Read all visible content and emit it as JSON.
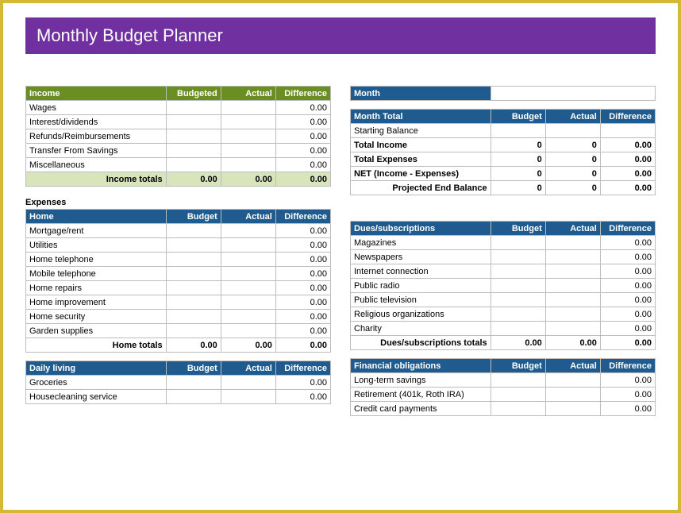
{
  "title": "Monthly Budget Planner",
  "colors": {
    "outer_border": "#d4b838",
    "title_bg": "#7030a0",
    "title_fg": "#ffffff",
    "green_header": "#6b8e23",
    "blue_header": "#1f5b8e",
    "totals_green_bg": "#d8e4bc",
    "grid": "#bdbdbd"
  },
  "income": {
    "header": "Income",
    "cols": [
      "Budgeted",
      "Actual",
      "Difference"
    ],
    "rows": [
      {
        "label": "Wages",
        "b": "",
        "a": "",
        "d": "0.00"
      },
      {
        "label": "Interest/dividends",
        "b": "",
        "a": "",
        "d": "0.00"
      },
      {
        "label": "Refunds/Reimbursements",
        "b": "",
        "a": "",
        "d": "0.00"
      },
      {
        "label": "Transfer From Savings",
        "b": "",
        "a": "",
        "d": "0.00"
      },
      {
        "label": "Miscellaneous",
        "b": "",
        "a": "",
        "d": "0.00"
      }
    ],
    "totals": {
      "label": "Income totals",
      "b": "0.00",
      "a": "0.00",
      "d": "0.00"
    }
  },
  "expenses_label": "Expenses",
  "home": {
    "header": "Home",
    "cols": [
      "Budget",
      "Actual",
      "Difference"
    ],
    "rows": [
      {
        "label": "Mortgage/rent",
        "b": "",
        "a": "",
        "d": "0.00"
      },
      {
        "label": "Utilities",
        "b": "",
        "a": "",
        "d": "0.00"
      },
      {
        "label": "Home telephone",
        "b": "",
        "a": "",
        "d": "0.00"
      },
      {
        "label": "Mobile telephone",
        "b": "",
        "a": "",
        "d": "0.00"
      },
      {
        "label": "Home repairs",
        "b": "",
        "a": "",
        "d": "0.00"
      },
      {
        "label": "Home improvement",
        "b": "",
        "a": "",
        "d": "0.00"
      },
      {
        "label": "Home security",
        "b": "",
        "a": "",
        "d": "0.00"
      },
      {
        "label": "Garden supplies",
        "b": "",
        "a": "",
        "d": "0.00"
      }
    ],
    "totals": {
      "label": "Home totals",
      "b": "0.00",
      "a": "0.00",
      "d": "0.00"
    }
  },
  "daily": {
    "header": "Daily living",
    "cols": [
      "Budget",
      "Actual",
      "Difference"
    ],
    "rows": [
      {
        "label": "Groceries",
        "b": "",
        "a": "",
        "d": "0.00"
      },
      {
        "label": "Housecleaning service",
        "b": "",
        "a": "",
        "d": "0.00"
      }
    ]
  },
  "month": {
    "label": "Month",
    "value": ""
  },
  "month_total": {
    "header": "Month Total",
    "cols": [
      "Budget",
      "Actual",
      "Difference"
    ],
    "rows": [
      {
        "label": "Starting Balance",
        "b": "",
        "a": "",
        "d": "",
        "bold": false
      },
      {
        "label": "Total Income",
        "b": "0",
        "a": "0",
        "d": "0.00",
        "bold": true
      },
      {
        "label": "Total Expenses",
        "b": "0",
        "a": "0",
        "d": "0.00",
        "bold": true
      },
      {
        "label": "NET (Income - Expenses)",
        "b": "0",
        "a": "0",
        "d": "0.00",
        "bold": true
      }
    ],
    "projected": {
      "label": "Projected End Balance",
      "b": "0",
      "a": "0",
      "d": "0.00"
    }
  },
  "dues": {
    "header": "Dues/subscriptions",
    "cols": [
      "Budget",
      "Actual",
      "Difference"
    ],
    "rows": [
      {
        "label": "Magazines",
        "b": "",
        "a": "",
        "d": "0.00"
      },
      {
        "label": "Newspapers",
        "b": "",
        "a": "",
        "d": "0.00"
      },
      {
        "label": "Internet connection",
        "b": "",
        "a": "",
        "d": "0.00"
      },
      {
        "label": "Public radio",
        "b": "",
        "a": "",
        "d": "0.00"
      },
      {
        "label": "Public television",
        "b": "",
        "a": "",
        "d": "0.00"
      },
      {
        "label": "Religious organizations",
        "b": "",
        "a": "",
        "d": "0.00"
      },
      {
        "label": "Charity",
        "b": "",
        "a": "",
        "d": "0.00"
      }
    ],
    "totals": {
      "label": "Dues/subscriptions totals",
      "b": "0.00",
      "a": "0.00",
      "d": "0.00"
    }
  },
  "financial": {
    "header": "Financial obligations",
    "cols": [
      "Budget",
      "Actual",
      "Difference"
    ],
    "rows": [
      {
        "label": "Long-term savings",
        "b": "",
        "a": "",
        "d": "0.00"
      },
      {
        "label": "Retirement (401k, Roth IRA)",
        "b": "",
        "a": "",
        "d": "0.00"
      },
      {
        "label": "Credit card payments",
        "b": "",
        "a": "",
        "d": "0.00"
      }
    ]
  },
  "col_widths": {
    "label": "46%",
    "b": "18%",
    "a": "18%",
    "d": "18%"
  }
}
